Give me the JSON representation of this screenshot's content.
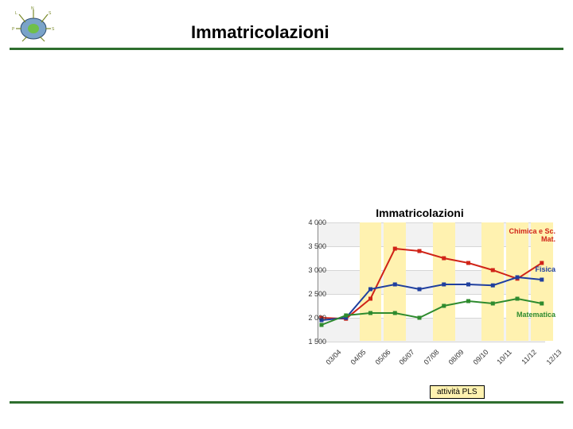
{
  "header": {
    "title": "Immatricolazioni",
    "rule_color": "#2e6e2e",
    "logo": {
      "body_fill": "#7aa3c9",
      "accent": "#6fbf4a",
      "shadow": "#2b4a6f",
      "label_color": "#7a8a2a"
    }
  },
  "chart": {
    "type": "line",
    "title": "Immatricolazioni",
    "title_fontsize": 14,
    "background_color": "#ffffff",
    "grid_color": "#d6d6d6",
    "axis_color": "#888888",
    "label_fontsize": 9,
    "x_categories": [
      "03/04",
      "04/05",
      "05/06",
      "06/07",
      "07/08",
      "08/09",
      "09/10",
      "10/11",
      "11/12",
      "12/13"
    ],
    "x_label_rotation_deg": -45,
    "ylim": [
      1500,
      4000
    ],
    "ytick_step": 500,
    "yticks": [
      1500,
      2000,
      2500,
      3000,
      3500,
      4000
    ],
    "yaxis_band_color": "#f2f2f2",
    "series": [
      {
        "name": "Chimica e Sc. Mat.",
        "color": "#d02418",
        "marker": "square",
        "values": [
          2000,
          1980,
          2400,
          3450,
          3400,
          3250,
          3150,
          3000,
          2820,
          3150
        ]
      },
      {
        "name": "Fisica",
        "color": "#1f3f9f",
        "marker": "square",
        "values": [
          1950,
          2000,
          2600,
          2700,
          2600,
          2700,
          2700,
          2680,
          2850,
          2800
        ]
      },
      {
        "name": "Matematica",
        "color": "#2e8b2e",
        "marker": "square",
        "values": [
          1850,
          2050,
          2100,
          2100,
          2000,
          2250,
          2350,
          2300,
          2400,
          2300
        ]
      }
    ],
    "highlight_color": "#fff2b0",
    "highlight_x": [
      "05/06",
      "06/07",
      "08/09",
      "10/11",
      "11/12",
      "12/13"
    ]
  },
  "footer": {
    "chip_label": "attività PLS",
    "chip_bg": "#fff2b0",
    "rule_color": "#2e6e2e"
  }
}
